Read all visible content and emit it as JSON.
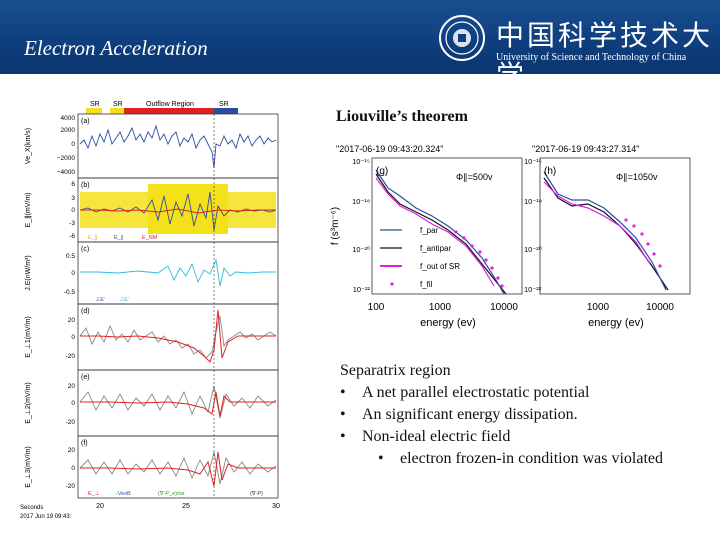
{
  "header": {
    "title": "Electron Acceleration",
    "logo_cn": "中国科学技术大学",
    "logo_en": "University of Science and Technology of China",
    "bg_color": "#0f3f7f"
  },
  "slide": {
    "theorem_title": "Liouville’s theorem"
  },
  "left_panels": {
    "region_labels": [
      "SR",
      "SR",
      "Outflow Region",
      "SR"
    ],
    "panels": [
      {
        "tag": "(a)",
        "ylabel": "Ve_X(km/s)",
        "ticks": [
          "4000",
          "2000",
          "0",
          "−2000",
          "−4000"
        ]
      },
      {
        "tag": "(b)",
        "ylabel": "E_∥(mV/m)",
        "ticks": [
          "6",
          "3",
          "0",
          "-3",
          "-6"
        ],
        "legend": [
          "E_∥",
          "E_∥",
          "E_NM"
        ]
      },
      {
        "tag": "(c)",
        "ylabel": "J.E(nW/m³)",
        "ticks": [
          "0.5",
          "0",
          "-0.5"
        ],
        "legend": [
          "J.E'",
          "J.E'"
        ]
      },
      {
        "tag": "(d)",
        "ylabel": "E_⊥1(mV/m)",
        "ticks": [
          "20",
          "0",
          "-20"
        ]
      },
      {
        "tag": "(e)",
        "ylabel": "E_⊥2(mV/m)",
        "ticks": [
          "20",
          "0",
          "-20"
        ]
      },
      {
        "tag": "(f)",
        "ylabel": "E_⊥3(mV/m)",
        "ticks": [
          "20",
          "0",
          "-20"
        ],
        "legend": [
          "E_⊥",
          "-VexB",
          "(∇·P_e)/ne",
          "(∇·P)"
        ]
      }
    ],
    "x_ticks": [
      "20",
      "25",
      "30"
    ],
    "x_caption_1": "Seconds",
    "x_caption_2": "2017 Jun 19 09:43:"
  },
  "right_panels": [
    {
      "tag": "(g)",
      "time": "\"2017-06-19 09:43:20.324\"",
      "phi": "Φ∥=500v",
      "legend": [
        "f_par",
        "f_antipar",
        "f_out of SR",
        "f_fil"
      ]
    },
    {
      "tag": "(h)",
      "time": "\"2017-06-19 09:43:27.314\"",
      "phi": "Φ∥=1050v"
    }
  ],
  "right_axes": {
    "ylabel": "f (s³m⁻⁶)",
    "xlabel": "energy (ev)",
    "yticks": [
      "10⁻¹⁵",
      "10⁻¹⁸",
      "10⁻²⁰",
      "10⁻²²"
    ],
    "xticks": [
      "100",
      "1000",
      "10000"
    ]
  },
  "bullets": {
    "head": "Separatrix region",
    "items": [
      "A net parallel electrostatic potential",
      "An significant energy dissipation.",
      "Non-ideal electric field"
    ],
    "sub": "electron frozen-in condition was violated"
  },
  "colors": {
    "blue": "#2b4fa0",
    "red": "#e02020",
    "yellow": "#f5e11a",
    "magenta": "#e020e0",
    "cyan": "#30b8e0"
  }
}
